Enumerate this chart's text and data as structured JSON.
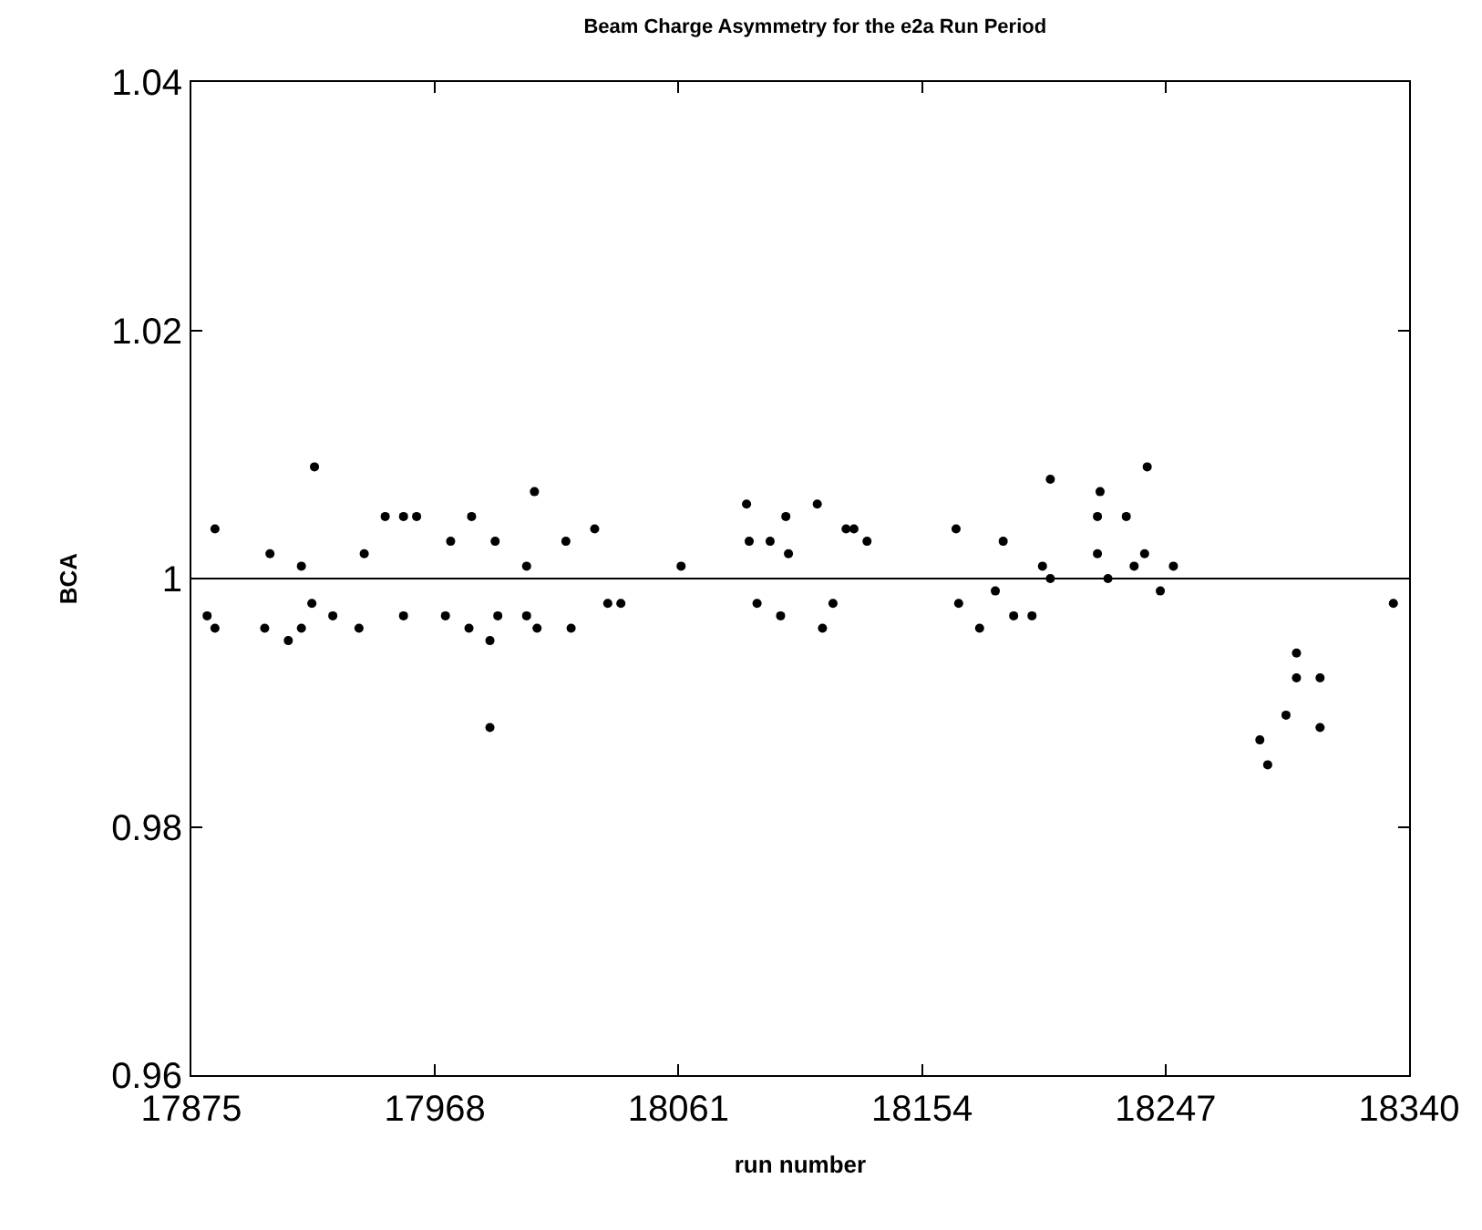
{
  "chart_data": {
    "type": "scatter",
    "title": "Beam Charge Asymmetry for the e2a Run Period",
    "xlabel": "run number",
    "ylabel": "BCA",
    "x": [
      17884,
      17884,
      17881,
      17903,
      17905,
      17912,
      17917,
      17921,
      17917,
      17922,
      17929,
      17939,
      17941,
      17949,
      17956,
      17956,
      17961,
      17974,
      17972,
      17982,
      17981,
      17991,
      17989,
      17989,
      17992,
      18006,
      18003,
      18003,
      18007,
      18018,
      18020,
      18029,
      18034,
      18039,
      18062,
      18087,
      18088,
      18091,
      18096,
      18100,
      18102,
      18103,
      18114,
      18116,
      18120,
      18125,
      18128,
      18133,
      18167,
      18168,
      18176,
      18185,
      18182,
      18189,
      18196,
      18200,
      18203,
      18203,
      18221,
      18240,
      18222,
      18221,
      18225,
      18232,
      18235,
      18239,
      18245,
      18250,
      18334,
      18297,
      18297,
      18293,
      18283,
      18286,
      18306,
      18306
    ],
    "values": [
      1.004,
      0.996,
      0.997,
      0.996,
      1.002,
      0.995,
      0.996,
      0.998,
      1.001,
      1.009,
      0.997,
      0.996,
      1.002,
      1.005,
      1.005,
      0.997,
      1.005,
      1.003,
      0.997,
      1.005,
      0.996,
      1.003,
      0.988,
      0.995,
      0.997,
      1.007,
      1.001,
      0.997,
      0.996,
      1.003,
      0.996,
      1.004,
      0.998,
      0.998,
      1.001,
      1.006,
      1.003,
      0.998,
      1.003,
      0.997,
      1.005,
      1.002,
      1.006,
      0.996,
      0.998,
      1.004,
      1.004,
      1.003,
      1.004,
      0.998,
      0.996,
      1.003,
      0.999,
      0.997,
      0.997,
      1.001,
      1.008,
      1.0,
      1.005,
      1.009,
      1.007,
      1.002,
      1.0,
      1.005,
      1.001,
      1.002,
      0.999,
      1.001,
      0.998,
      0.994,
      0.992,
      0.989,
      0.987,
      0.985,
      0.992,
      0.988
    ],
    "color": "#000000",
    "marker": "circle",
    "xlim": [
      17875,
      18340
    ],
    "xticks": [
      17875,
      17968,
      18061,
      18154,
      18247,
      18340
    ],
    "ylim": [
      0.96,
      1.04
    ],
    "yticks": [
      0.96,
      0.98,
      1,
      1.02,
      1.04
    ],
    "ref_lines": [
      {
        "axis": "y",
        "value": 1,
        "color": "#000000"
      }
    ],
    "grid": false
  }
}
